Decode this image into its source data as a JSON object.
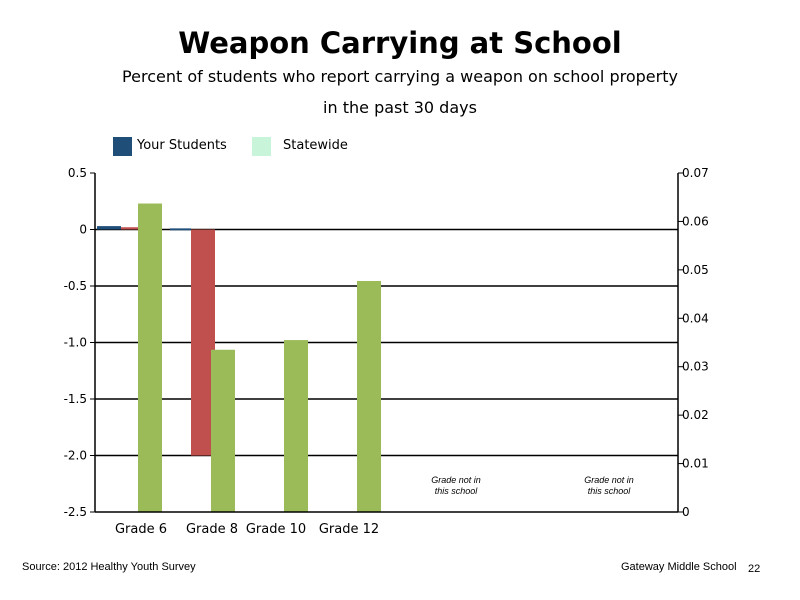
{
  "colors": {
    "your_students": "#1f4e79",
    "statewide": "#c8f5d9",
    "red_bar": "#c0504d",
    "green_bar": "#9bbb59"
  },
  "chart_data": {
    "type": "bar",
    "title": "Weapon Carrying at School",
    "subtitle_line1": "Percent of students who report carrying a weapon on school property",
    "subtitle_line2": "in the past 30 days",
    "legend": [
      {
        "label": "Your Students",
        "color": "#1f4e79"
      },
      {
        "label": "Statewide",
        "color": "#c8f5d9"
      }
    ],
    "legend_placement": "top-left",
    "categories": [
      "Grade 6",
      "Grade 8",
      "Grade 10",
      "Grade 12"
    ],
    "left_axis": {
      "ylim": [
        -2.5,
        0.5
      ],
      "ticks": [
        0.5,
        0,
        -0.5,
        -1.0,
        -1.5,
        -2.0,
        -2.5
      ],
      "tick_labels": [
        "0.5",
        "0",
        "-0.5",
        "-1.0",
        "-1.5",
        "-2.0",
        "-2.5"
      ]
    },
    "right_axis": {
      "ylim": [
        0,
        0.07
      ],
      "ticks": [
        0.07,
        0.06,
        0.05,
        0.04,
        0.03,
        0.02,
        0.01,
        0
      ],
      "tick_labels": [
        "0.07",
        "0.06",
        "0.05",
        "0.04",
        "0.03",
        "0.02",
        "0.01",
        "0"
      ]
    },
    "series": [
      {
        "name": "Your Students",
        "axis": "left",
        "color": "#1f4e79",
        "values": [
          0.03,
          0.01,
          null,
          null
        ]
      },
      {
        "axis": "left",
        "color": "#c0504d",
        "values": [
          0.02,
          -2.0,
          null,
          null
        ]
      },
      {
        "axis": "right",
        "color": "#9bbb59",
        "values": [
          0.0637,
          0.0335,
          0.0355,
          0.0477
        ]
      }
    ],
    "grid": "horizontal",
    "annotations": [
      {
        "line1": "Grade not in",
        "line2": "this school"
      },
      {
        "line1": "Grade not in",
        "line2": "this school"
      }
    ]
  },
  "footer": {
    "source": "Source: 2012 Healthy Youth Survey",
    "school": "Gateway Middle School",
    "page": "22"
  }
}
